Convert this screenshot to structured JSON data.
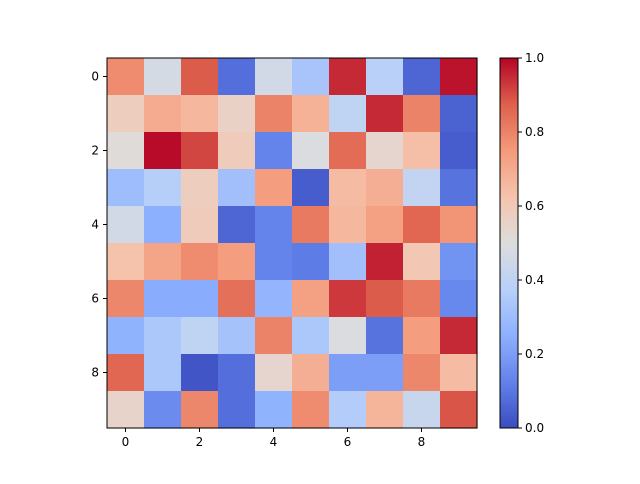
{
  "chart_data": {
    "type": "heatmap",
    "title": "",
    "xlabel": "",
    "ylabel": "",
    "colormap": "coolwarm",
    "x_ticks": [
      0,
      2,
      4,
      6,
      8
    ],
    "y_ticks": [
      0,
      2,
      4,
      6,
      8
    ],
    "colorbar": {
      "min": 0.0,
      "max": 1.0,
      "ticks": [
        "0.0",
        "0.2",
        "0.4",
        "0.6",
        "0.8",
        "1.0"
      ]
    },
    "values": [
      [
        0.78,
        0.47,
        0.88,
        0.08,
        0.46,
        0.33,
        0.95,
        0.38,
        0.06,
        0.98
      ],
      [
        0.58,
        0.7,
        0.66,
        0.56,
        0.8,
        0.68,
        0.4,
        0.95,
        0.8,
        0.05
      ],
      [
        0.51,
        0.99,
        0.91,
        0.59,
        0.13,
        0.49,
        0.85,
        0.54,
        0.64,
        0.04
      ],
      [
        0.3,
        0.37,
        0.58,
        0.31,
        0.74,
        0.04,
        0.65,
        0.69,
        0.41,
        0.09
      ],
      [
        0.46,
        0.25,
        0.59,
        0.06,
        0.13,
        0.82,
        0.66,
        0.73,
        0.86,
        0.76
      ],
      [
        0.63,
        0.72,
        0.78,
        0.74,
        0.13,
        0.11,
        0.31,
        0.96,
        0.61,
        0.17
      ],
      [
        0.79,
        0.24,
        0.24,
        0.84,
        0.27,
        0.73,
        0.93,
        0.88,
        0.82,
        0.14
      ],
      [
        0.26,
        0.34,
        0.4,
        0.32,
        0.8,
        0.34,
        0.49,
        0.09,
        0.74,
        0.95
      ],
      [
        0.86,
        0.34,
        0.02,
        0.08,
        0.54,
        0.69,
        0.2,
        0.2,
        0.79,
        0.65
      ],
      [
        0.55,
        0.15,
        0.79,
        0.08,
        0.26,
        0.78,
        0.36,
        0.67,
        0.43,
        0.89
      ]
    ]
  }
}
